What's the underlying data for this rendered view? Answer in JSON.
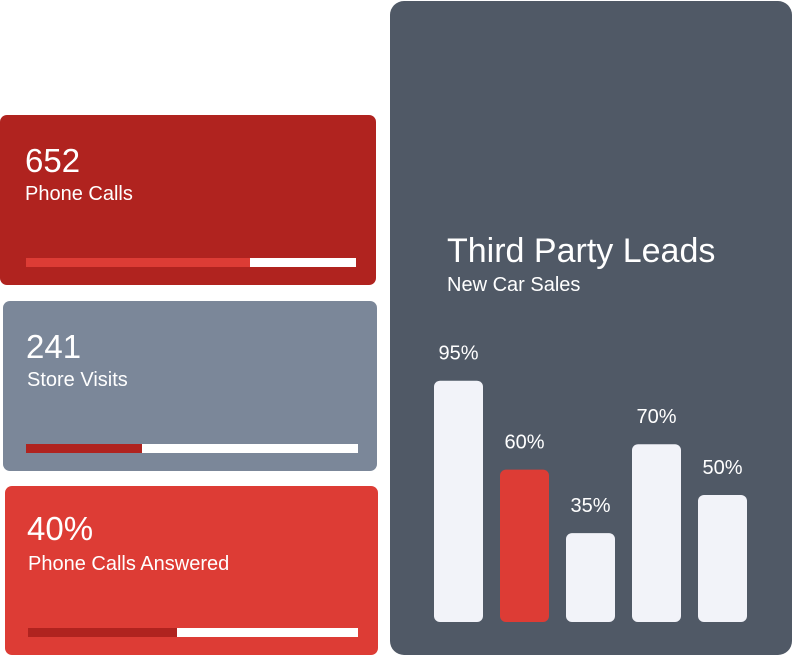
{
  "colors": {
    "dark_red": "#b0231f",
    "slate": "#7b8799",
    "red": "#dd3c35",
    "panel": "#505966",
    "bar": "#f2f3f9",
    "track": "#ffffff"
  },
  "stats": [
    {
      "value": "652",
      "label": "Phone Calls",
      "progress": 0.68,
      "bar_color": "#dd3c35"
    },
    {
      "value": "241",
      "label": "Store Visits",
      "progress": 0.35,
      "bar_color": "#b0231f"
    },
    {
      "value": "40%",
      "label": "Phone Calls Answered",
      "progress": 0.45,
      "bar_color": "#b0231f"
    }
  ],
  "chart_data": {
    "type": "bar",
    "title": "Third Party Leads",
    "subtitle": "New Car Sales",
    "values": [
      95,
      60,
      35,
      70,
      50
    ],
    "data_labels": [
      "95%",
      "60%",
      "35%",
      "70%",
      "50%"
    ],
    "highlight_index": 1,
    "ylim": [
      0,
      100
    ],
    "grid": false
  }
}
